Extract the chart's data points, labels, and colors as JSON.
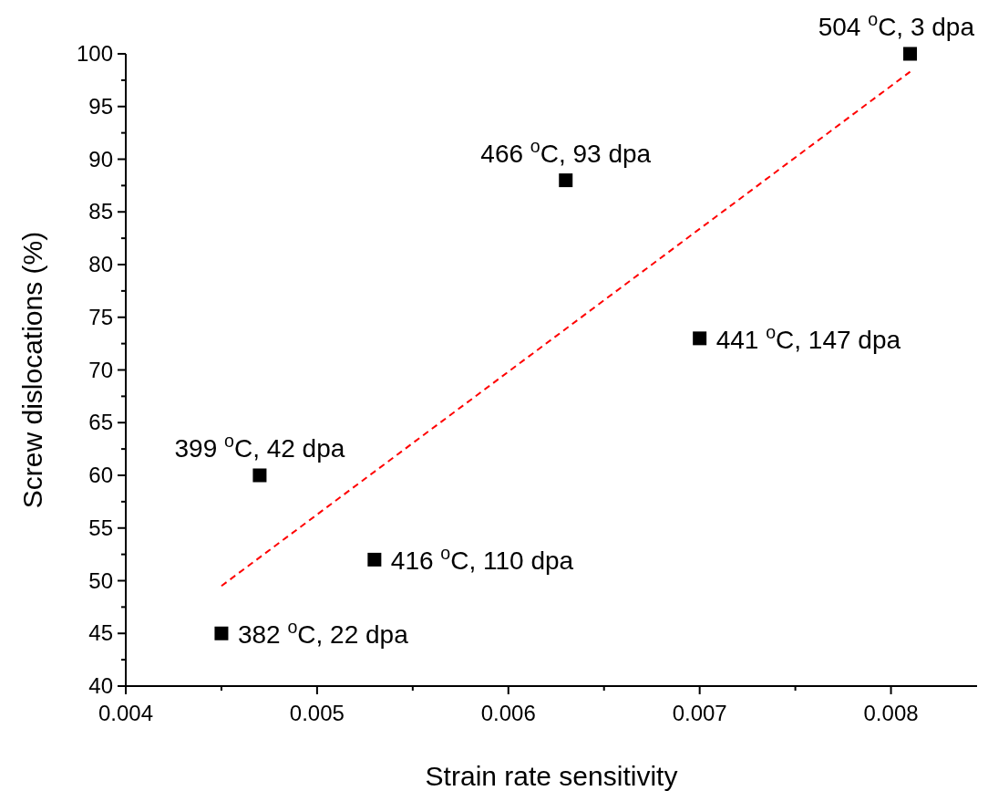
{
  "chart_data": {
    "type": "scatter",
    "xlabel": "Strain rate sensitivity",
    "ylabel": "Screw dislocations (%)",
    "xlim": [
      0.004,
      0.00845
    ],
    "ylim": [
      40,
      100
    ],
    "xticks": [
      0.004,
      {
        "value": 0.0045,
        "label": null
      },
      0.005,
      {
        "value": 0.0055,
        "label": null
      },
      0.006,
      {
        "value": 0.0065,
        "label": null
      },
      0.007,
      {
        "value": 0.0075,
        "label": null
      },
      0.008
    ],
    "yticks": [
      40,
      {
        "value": 42.5,
        "label": null
      },
      45,
      {
        "value": 47.5,
        "label": null
      },
      50,
      {
        "value": 52.5,
        "label": null
      },
      55,
      {
        "value": 57.5,
        "label": null
      },
      60,
      {
        "value": 62.5,
        "label": null
      },
      65,
      {
        "value": 67.5,
        "label": null
      },
      70,
      {
        "value": 72.5,
        "label": null
      },
      75,
      {
        "value": 77.5,
        "label": null
      },
      80,
      {
        "value": 82.5,
        "label": null
      },
      85,
      {
        "value": 87.5,
        "label": null
      },
      90,
      {
        "value": 92.5,
        "label": null
      },
      95,
      {
        "value": 97.5,
        "label": null
      },
      100
    ],
    "grid": false,
    "series": [
      {
        "color": "#000000",
        "marker": "square",
        "x": [
          0.0045,
          0.0047,
          0.0053,
          0.0063,
          0.007,
          0.0081
        ],
        "values": [
          45,
          60,
          52,
          88,
          73,
          100
        ]
      },
      {
        "type": "line",
        "color": "#ff0000",
        "line_style": "dashed",
        "marker": "none",
        "x": [
          0.0045,
          0.0081
        ],
        "values": [
          49.5,
          98.3
        ]
      }
    ],
    "annotations": [
      {
        "text": "382 $^{o}$C, 22 dpa",
        "x": 0.0045,
        "y": 45
      },
      {
        "text": "399 $^{o}$C, 42 dpa",
        "x": 0.0047,
        "y": 60
      },
      {
        "text": "416 $^{o}$C, 110 dpa",
        "x": 0.0053,
        "y": 52
      },
      {
        "text": "466 $^{o}$C, 93 dpa",
        "x": 0.0063,
        "y": 88
      },
      {
        "text": "441 $^{o}$C, 147 dpa",
        "x": 0.007,
        "y": 73
      },
      {
        "text": "504 $^{o}$C, 3 dpa",
        "x": 0.0081,
        "y": 100
      }
    ]
  }
}
